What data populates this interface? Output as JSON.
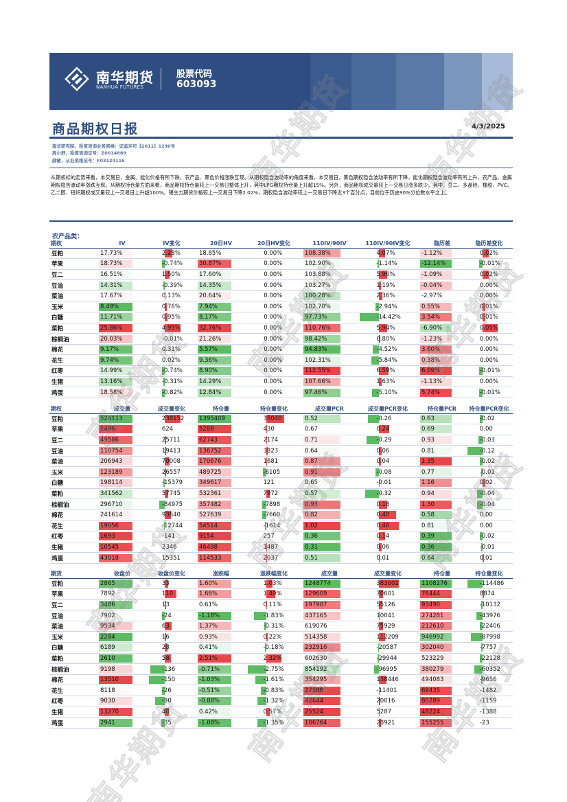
{
  "header": {
    "brand_cn": "南华期货",
    "brand_en": "NANHUA FUTURES",
    "stock_label": "股票代码",
    "stock_code": "603093"
  },
  "report": {
    "title": "商品期权日报",
    "date": "4/3/2025",
    "authors": [
      "南华研究院，投资咨询业务资格：证监许可【2011】1290号",
      "周小舒，投资咨询证号：Z0014889",
      "薛敏，从业资格证号：F03124116"
    ],
    "summary": "从期权标的走势来看，本交易日，金属、能化价格有所下跌，农产品、黑色价格涨跌互现。从期权隐含波动率的角度来看，本交易日，黑色期权隐含波动率有所下降，能化期权隐含波动率有所上升，农产品、金属期权隐含波动率涨跌互现。从期权持仓量方面来看，商品期权持仓量较上一交易日整体上升，其中LPG期权持仓量上升超15%。另外，商品期权成交量较上一交易日涨多跌少。其中，豆二、多晶硅、橡胶、PVC、乙二醇、短纤期权成交量较上一交易日上升超100%。锡主力期货价格较上一交易日下降2.02%，期权隐含波动率较上一交易日下降近3个百分点，目前位于历史90%分位数水平之上。",
    "section_label": "农产品类："
  },
  "watermark": "南华期货",
  "colors": {
    "brand": "#2f4d80",
    "green": "#5dbb63",
    "red": "#e8474a"
  },
  "table1": {
    "headers": [
      "期权",
      "IV",
      "IV变化",
      "20日HV",
      "20日HV变化",
      "110IV/90IV",
      "110IV/90IV变化",
      "隐历差",
      "隐历差变化"
    ],
    "rows": [
      [
        "豆粕",
        "17.73%",
        "2.28%",
        "18.85%",
        "0.00%",
        "108.38%",
        "4.07%",
        "-1.12%",
        "0.02%"
      ],
      [
        "苹果",
        "18.73%",
        "-0.74%",
        "30.87%",
        "0.00%",
        "102.90%",
        "-1.14%",
        "-12.14%",
        "-0.01%"
      ],
      [
        "豆二",
        "16.51%",
        "1.50%",
        "17.60%",
        "0.00%",
        "103.88%",
        "5.96%",
        "-1.09%",
        "0.02%"
      ],
      [
        "豆油",
        "14.31%",
        "-0.39%",
        "14.35%",
        "0.00%",
        "103.27%",
        "1.19%",
        "-0.04%",
        "0.00%"
      ],
      [
        "菜油",
        "17.67%",
        "0.13%",
        "20.64%",
        "0.00%",
        "100.28%",
        "2.36%",
        "-2.97%",
        "0.00%"
      ],
      [
        "玉米",
        "8.49%",
        "0.76%",
        "7.94%",
        "0.00%",
        "102.70%",
        "-2.94%",
        "0.55%",
        "0.01%"
      ],
      [
        "白糖",
        "11.71%",
        "0.95%",
        "8.17%",
        "0.00%",
        "97.73%",
        "-14.42%",
        "3.54%",
        "0.01%"
      ],
      [
        "菜粕",
        "25.86%",
        "4.95%",
        "32.76%",
        "0.00%",
        "110.76%",
        "5.94%",
        "-6.90%",
        "0.05%"
      ],
      [
        "棕榈油",
        "20.03%",
        "-0.01%",
        "21.26%",
        "0.00%",
        "98.42%",
        "0.80%",
        "-1.23%",
        "0.00%"
      ],
      [
        "棉花",
        "9.17%",
        "0.31%",
        "5.57%",
        "0.00%",
        "94.83%",
        "-4.52%",
        "3.60%",
        "0.00%"
      ],
      [
        "花生",
        "9.74%",
        "0.02%",
        "9.36%",
        "0.00%",
        "102.31%",
        "-5.84%",
        "0.38%",
        "0.00%"
      ],
      [
        "红枣",
        "14.99%",
        "-0.74%",
        "8.90%",
        "0.00%",
        "112.55%",
        "6.59%",
        "6.09%",
        "-0.01%"
      ],
      [
        "生猪",
        "13.16%",
        "-0.31%",
        "14.29%",
        "0.00%",
        "107.66%",
        "1.63%",
        "-1.13%",
        "0.00%"
      ],
      [
        "鸡蛋",
        "18.58%",
        "-0.82%",
        "12.84%",
        "0.00%",
        "97.46%",
        "-5.10%",
        "5.74%",
        "-0.01%"
      ]
    ]
  },
  "table2": {
    "headers": [
      "期权",
      "成交量",
      "成交量变化",
      "持仓量",
      "持仓量变化",
      "成交量PCR",
      "成交量PCR变化",
      "持仓量PCR",
      "持仓量PCR变化"
    ],
    "rows": [
      [
        "豆粕",
        "524113",
        "238152",
        "1395409",
        "35040",
        "0.52",
        "-0.26",
        "0.63",
        "-0.02"
      ],
      [
        "苹果",
        "1496",
        "624",
        "5288",
        "430",
        "0.67",
        "0.24",
        "0.69",
        "0.00"
      ],
      [
        "豆二",
        "49586",
        "25711",
        "62743",
        "2174",
        "0.71",
        "-0.29",
        "0.93",
        "-0.03"
      ],
      [
        "豆油",
        "110754",
        "19413",
        "136752",
        "3823",
        "0.64",
        "0.06",
        "0.81",
        "-0.12"
      ],
      [
        "菜油",
        "206943",
        "70008",
        "170676",
        "1681",
        "0.87",
        "0.04",
        "1.35",
        "-0.02"
      ],
      [
        "玉米",
        "123189",
        "26557",
        "489725",
        "-6105",
        "0.91",
        "-0.08",
        "0.77",
        "-0.01"
      ],
      [
        "白糖",
        "198114",
        "-15379",
        "349617",
        "121",
        "0.65",
        "-0.01",
        "1.16",
        "0.02"
      ],
      [
        "菜粕",
        "341562",
        "57745",
        "532361",
        "7972",
        "0.57",
        "-0.32",
        "0.94",
        "-0.04"
      ],
      [
        "棕榈油",
        "296710",
        "-84975",
        "357482",
        "-7898",
        "0.93",
        "0.18",
        "1.30",
        "-0.04"
      ],
      [
        "棉花",
        "241614",
        "93640",
        "527639",
        "-7660",
        "0.82",
        "0.40",
        "0.58",
        "0.00"
      ],
      [
        "花生",
        "19056",
        "-12744",
        "54514",
        "-1614",
        "1.02",
        "0.46",
        "0.81",
        "0.00"
      ],
      [
        "红枣",
        "1693",
        "-141",
        "9154",
        "257",
        "0.36",
        "0.14",
        "0.39",
        "-0.02"
      ],
      [
        "生猪",
        "10545",
        "2346",
        "46498",
        "1487",
        "0.31",
        "0.06",
        "0.36",
        "-0.01"
      ],
      [
        "鸡蛋",
        "43018",
        "15351",
        "114533",
        "2037",
        "0.51",
        "0.01",
        "0.64",
        "0.01"
      ]
    ]
  },
  "table3": {
    "headers": [
      "期货",
      "收盘价",
      "收盘价变化",
      "涨跌幅",
      "涨跌幅变化",
      "成交量",
      "成交量变化",
      "持仓量",
      "持仓量变化"
    ],
    "rows": [
      [
        "豆粕",
        "2865",
        "33",
        "1.60%",
        "1.03%",
        "1248774",
        "383002",
        "1108276",
        "-114486"
      ],
      [
        "苹果",
        "7892",
        "110",
        "1.66%",
        "1.40%",
        "129609",
        "70601",
        "76444",
        "8874"
      ],
      [
        "豆二",
        "3486",
        "13",
        "0.61%",
        "0.11%",
        "197907",
        "55126",
        "93490",
        "-10132"
      ],
      [
        "豆油",
        "7902",
        "-24",
        "-1.18%",
        "-1.83%",
        "437165",
        "10041",
        "274281",
        "-43976"
      ],
      [
        "菜油",
        "9534",
        "63",
        "1.37%",
        "-0.31%",
        "619076",
        "75929",
        "212610",
        "-22406"
      ],
      [
        "玉米",
        "2284",
        "16",
        "0.93%",
        "0.22%",
        "514358",
        "112209",
        "946992",
        "-87998"
      ],
      [
        "白糖",
        "6189",
        "28",
        "0.41%",
        "-0.18%",
        "232916",
        "-20587",
        "302040",
        "-7757"
      ],
      [
        "菜粕",
        "2610",
        "58",
        "2.51%",
        "2.32%",
        "602630",
        "-29944",
        "523229",
        "-22128"
      ],
      [
        "棕榈油",
        "9198",
        "-136",
        "-0.71%",
        "-2.75%",
        "854192",
        "-96995",
        "380279",
        "-60352"
      ],
      [
        "棉花",
        "13510",
        "-150",
        "-1.03%",
        "-1.61%",
        "354295",
        "138446",
        "494083",
        "-9656"
      ],
      [
        "花生",
        "8118",
        "-26",
        "-0.51%",
        "-0.83%",
        "27508",
        "-11401",
        "69435",
        "-1482"
      ],
      [
        "红枣",
        "9030",
        "-90",
        "-0.88%",
        "-1.32%",
        "42644",
        "20016",
        "80289",
        "-1159"
      ],
      [
        "生猪",
        "13270",
        "40",
        "0.42%",
        "0.57%",
        "25524",
        "5287",
        "48224",
        "-1388"
      ],
      [
        "鸡蛋",
        "2941",
        "-35",
        "-1.08%",
        "-1.35%",
        "106764",
        "28921",
        "155255",
        "-23"
      ]
    ]
  }
}
